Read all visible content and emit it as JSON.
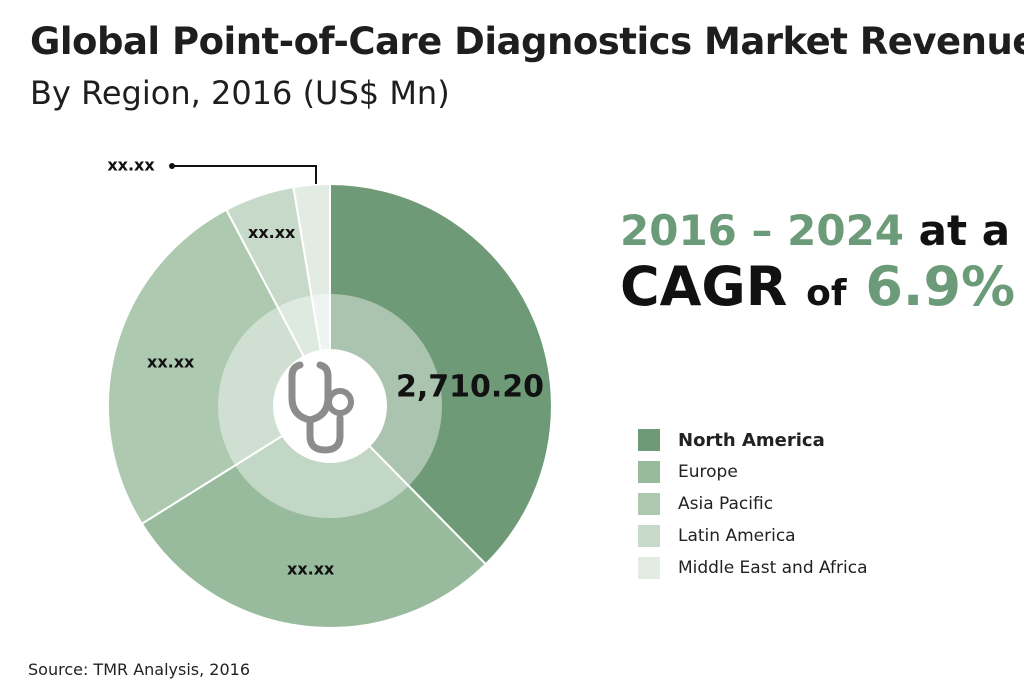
{
  "chart_data": {
    "type": "pie",
    "title": "Global Point-of-Care Diagnostics Market Revenue",
    "subtitle": "By Region, 2016 (US$ Mn)",
    "categories": [
      "North America",
      "Europe",
      "Asia Pacific",
      "Latin America",
      "Middle East and Africa"
    ],
    "values": [
      2710.2,
      2051.0,
      1885.0,
      367.0,
      190.0
    ],
    "data_labels": [
      "2,710.20",
      "xx.xx",
      "xx.xx",
      "xx.xx",
      "xx.xx"
    ],
    "colors": [
      "#6f9a77",
      "#98bb9d",
      "#adc9b0",
      "#c7dac9",
      "#e2ece3"
    ],
    "legend_position": "right",
    "source": "Source: TMR Analysis, 2016"
  },
  "cagr": {
    "years": "2016 – 2024",
    "at_a": "at a",
    "cagr_label": "CAGR",
    "of": "of",
    "rate": "6.9%"
  },
  "center_icon": "stethoscope-icon"
}
